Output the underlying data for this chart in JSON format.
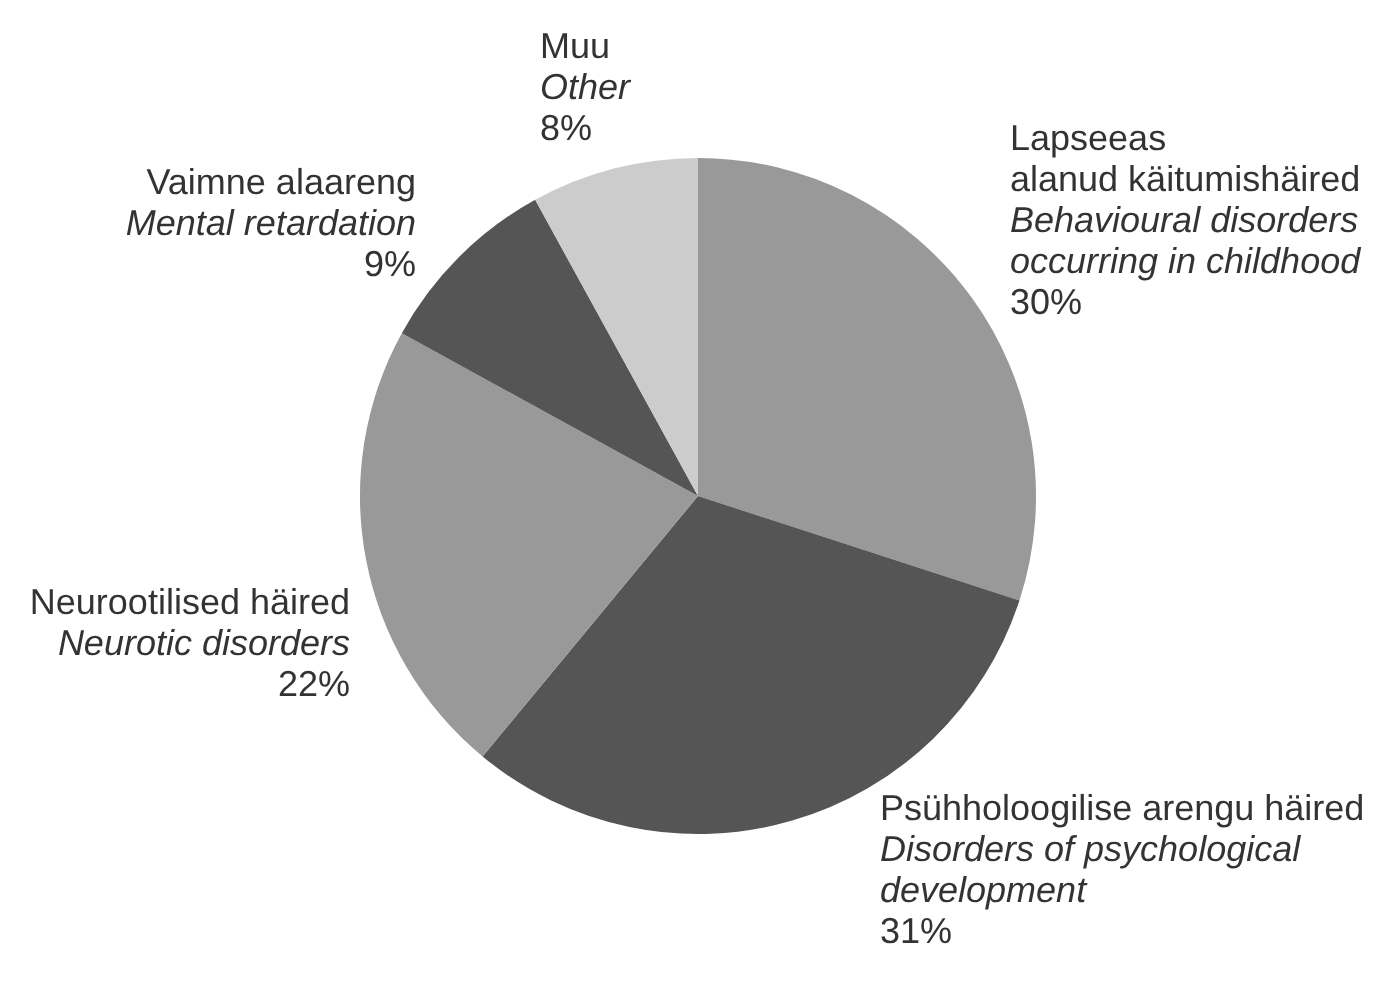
{
  "chart_data": {
    "type": "pie",
    "categories": [
      "Lapseeas\nalanud käitumishäired\nBehavioural disorders\noccurring in childhood",
      "Psühholoogilise arengu häired\nDisorders of psychological\ndevelopment",
      "Neurootilised häired\nNeurotic disorders",
      "Vaimne alaareng\nMental retardation",
      "Muu\nOther"
    ],
    "values": [
      30,
      31,
      22,
      9,
      8
    ],
    "colors": [
      "#999999",
      "#555555",
      "#999999",
      "#555555",
      "#cccccc"
    ],
    "value_labels": [
      "30%",
      "31%",
      "22%",
      "9%",
      "8%"
    ]
  }
}
